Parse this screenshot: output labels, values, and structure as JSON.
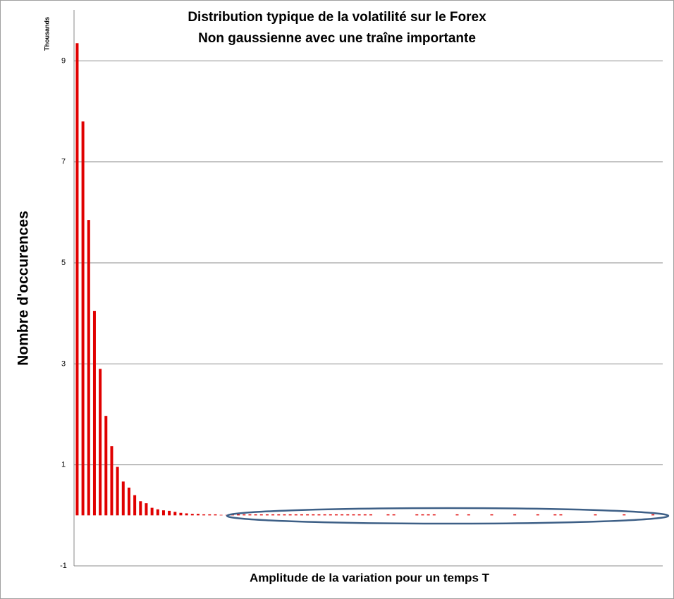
{
  "chart_data": {
    "type": "bar",
    "title": "Distribution typique de la volatilité sur le Forex",
    "subtitle": "Non gaussienne avec une traîne importante",
    "x_label": "Amplitude de la variation pour un temps T",
    "y_label": "Nombre d'occurences",
    "y_unit": "Thousands",
    "color": "#e00000",
    "values": [
      9.35,
      7.8,
      5.85,
      4.05,
      2.9,
      1.97,
      1.37,
      0.96,
      0.67,
      0.55,
      0.4,
      0.28,
      0.24,
      0.15,
      0.12,
      0.1,
      0.09,
      0.07,
      0.05,
      0.04,
      0.03,
      0.03,
      0.02,
      0.02,
      0.02,
      0.01,
      0.01,
      0.02,
      0.02,
      0.02,
      0.02,
      0.02,
      0.02,
      0.02,
      0.02,
      0.02,
      0.02,
      0.02,
      0.02,
      0.02,
      0.02,
      0.02,
      0.02,
      0.02,
      0.02,
      0.02,
      0.02,
      0.02,
      0.02,
      0.02,
      0.02,
      0.02,
      0,
      0,
      0.02,
      0.02,
      0,
      0,
      0,
      0.02,
      0.02,
      0.02,
      0.02,
      0,
      0,
      0,
      0.02,
      0,
      0.02,
      0,
      0,
      0,
      0.02,
      0,
      0,
      0,
      0.02,
      0,
      0,
      0,
      0.02,
      0,
      0,
      0.02,
      0.02,
      0,
      0,
      0,
      0,
      0,
      0.02,
      0,
      0,
      0,
      0,
      0.02,
      0,
      0,
      0,
      0,
      0.02,
      0
    ],
    "ylim": [
      -1,
      10
    ],
    "yticks": [
      -1,
      1,
      3,
      5,
      7,
      9
    ],
    "grid": true
  }
}
